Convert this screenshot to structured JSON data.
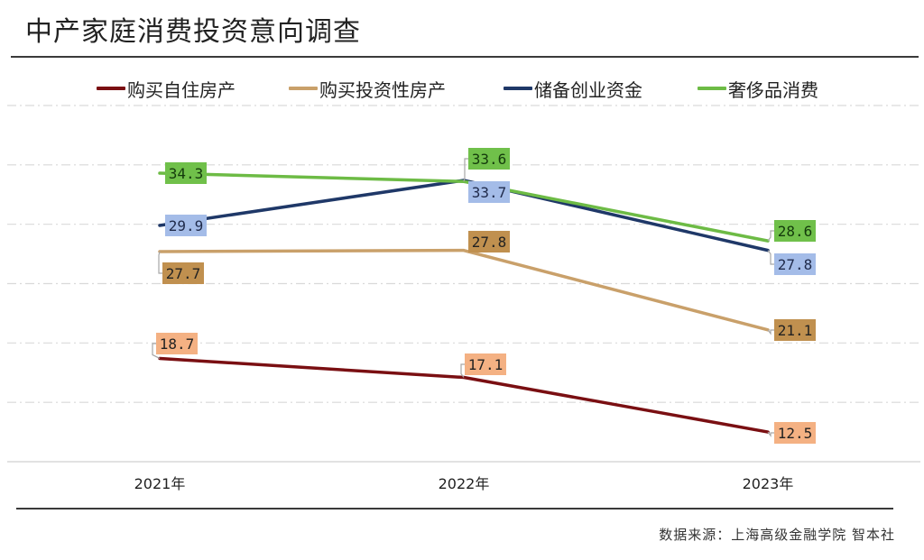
{
  "title": "中产家庭消费投资意向调查",
  "source": "数据来源：上海高级金融学院 智本社",
  "legend": [
    {
      "label": "购买自住房产",
      "color": "#7a0f12"
    },
    {
      "label": "购买投资性房产",
      "color": "#c9a06a"
    },
    {
      "label": "储备创业资金",
      "color": "#1f3868"
    },
    {
      "label": "奢侈品消费",
      "color": "#6dbb45"
    }
  ],
  "chart_data": {
    "type": "line",
    "title": "中产家庭消费投资意向调查",
    "xlabel": "",
    "ylabel": "",
    "categories": [
      "2021年",
      "2022年",
      "2023年"
    ],
    "ylim": [
      10,
      40
    ],
    "ytick_step": 5,
    "y_tick_labels_shown": false,
    "grid": true,
    "legend_position": "top",
    "series": [
      {
        "name": "购买自住房产",
        "values": [
          18.7,
          17.1,
          12.5
        ],
        "color": "#7a0f12",
        "label_bg": "#f4b183",
        "label_color": "#222222",
        "labels": [
          "18.7",
          "17.1",
          "12.5"
        ]
      },
      {
        "name": "购买投资性房产",
        "values": [
          27.7,
          27.8,
          21.1
        ],
        "color": "#c9a06a",
        "label_bg": "#c0904f",
        "label_color": "#222222",
        "labels": [
          "27.7",
          "27.8",
          "21.1"
        ]
      },
      {
        "name": "储备创业资金",
        "values": [
          29.9,
          33.7,
          27.8
        ],
        "color": "#1f3868",
        "label_bg": "#a4bce8",
        "label_color": "#1f2a4a",
        "labels": [
          "29.9",
          "33.7",
          "27.8"
        ]
      },
      {
        "name": "奢侈品消费",
        "values": [
          34.3,
          33.6,
          28.6
        ],
        "color": "#6dbb45",
        "label_bg": "#70c04a",
        "label_color": "#143a0c",
        "labels": [
          "34.3",
          "33.6",
          "28.6"
        ]
      }
    ]
  }
}
